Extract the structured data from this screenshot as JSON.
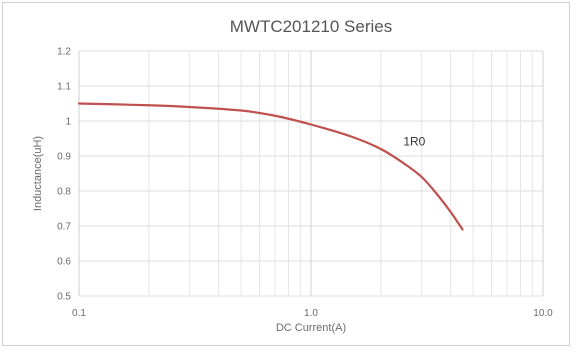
{
  "chart_data": {
    "type": "line",
    "title": "MWTC201210 Series",
    "xlabel": "DC Current(A)",
    "ylabel": "Inductance(uH)",
    "x_scale": "log",
    "xlim": [
      0.1,
      10
    ],
    "ylim": [
      0.5,
      1.2
    ],
    "x_ticks": [
      0.1,
      1.0,
      10.0
    ],
    "x_tick_labels": [
      "0.1",
      "1.0",
      "10.0"
    ],
    "y_ticks": [
      0.5,
      0.6,
      0.7,
      0.8,
      0.9,
      1.0,
      1.1,
      1.2
    ],
    "y_tick_labels": [
      "0.5",
      "0.6",
      "0.7",
      "0.8",
      "0.9",
      "1",
      "1.1",
      "1.2"
    ],
    "grid": true,
    "legend": "none",
    "series": [
      {
        "name": "1R0",
        "color": "#c0504d",
        "x": [
          0.1,
          0.2,
          0.3,
          0.5,
          0.7,
          1.0,
          1.5,
          2.0,
          2.5,
          3.0,
          3.5,
          4.0,
          4.5
        ],
        "y": [
          1.05,
          1.045,
          1.04,
          1.03,
          1.015,
          0.99,
          0.955,
          0.92,
          0.88,
          0.84,
          0.79,
          0.74,
          0.69
        ]
      }
    ],
    "annotations": [
      {
        "text": "1R0",
        "x": 2.5,
        "y": 0.93
      }
    ]
  }
}
